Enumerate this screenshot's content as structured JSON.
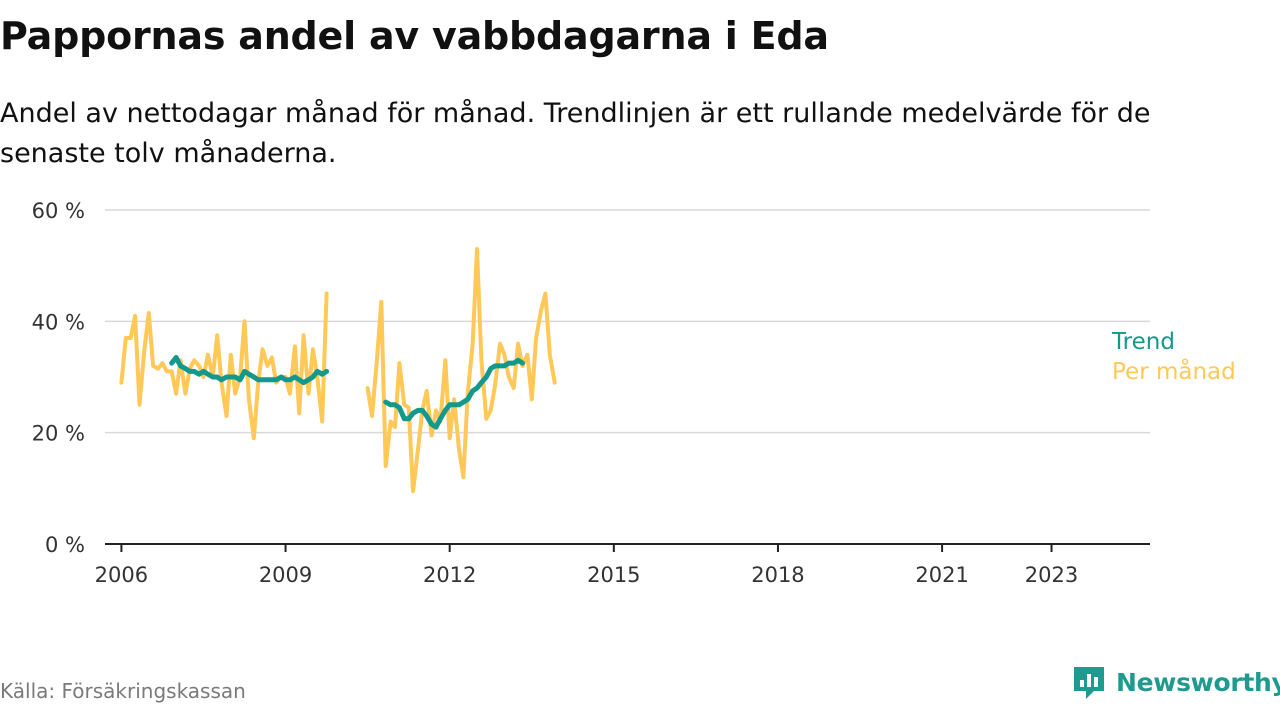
{
  "title": "Pappornas andel av vabbdagarna i Eda",
  "subtitle": "Andel av nettodagar månad för månad. Trendlinjen är ett rullande medelvärde för de senaste tolv månaderna.",
  "source": "Källa: Försäkringskassan",
  "brand": "Newsworthy",
  "colors": {
    "monthly": "#ffc857",
    "trend": "#12998c",
    "grid": "#d9d9d9",
    "axis": "#333333"
  },
  "chart_data": {
    "type": "line",
    "xlim": [
      2005.7,
      2024.8
    ],
    "ylim": [
      0,
      60
    ],
    "yticks": [
      0,
      20,
      40,
      60
    ],
    "ytick_labels": [
      "0 %",
      "20 %",
      "40 %",
      "60 %"
    ],
    "xticks": [
      2006,
      2009,
      2012,
      2015,
      2018,
      2021,
      2023
    ],
    "xtick_labels": [
      "2006",
      "2009",
      "2012",
      "2015",
      "2018",
      "2021",
      "2023"
    ],
    "grid": true,
    "series": [
      {
        "name": "Per månad",
        "segments": [
          [
            [
              2006.0,
              29
            ],
            [
              2006.08,
              37
            ],
            [
              2006.17,
              37
            ],
            [
              2006.25,
              41
            ],
            [
              2006.33,
              25
            ],
            [
              2006.42,
              35
            ],
            [
              2006.5,
              41.5
            ],
            [
              2006.58,
              32
            ],
            [
              2006.67,
              31.5
            ],
            [
              2006.75,
              32.5
            ],
            [
              2006.83,
              31
            ],
            [
              2006.92,
              31
            ],
            [
              2007.0,
              27
            ],
            [
              2007.08,
              33
            ],
            [
              2007.17,
              27
            ],
            [
              2007.25,
              31.5
            ],
            [
              2007.33,
              33
            ],
            [
              2007.42,
              32
            ],
            [
              2007.5,
              30
            ],
            [
              2007.58,
              34
            ],
            [
              2007.67,
              30
            ],
            [
              2007.75,
              37.5
            ],
            [
              2007.83,
              29
            ],
            [
              2007.92,
              23
            ],
            [
              2008.0,
              34
            ],
            [
              2008.08,
              27
            ],
            [
              2008.17,
              30
            ],
            [
              2008.25,
              40
            ],
            [
              2008.33,
              26
            ],
            [
              2008.42,
              19
            ],
            [
              2008.5,
              29
            ],
            [
              2008.58,
              35
            ],
            [
              2008.67,
              32
            ],
            [
              2008.75,
              33.5
            ],
            [
              2008.83,
              29
            ],
            [
              2008.92,
              30
            ],
            [
              2009.0,
              30
            ],
            [
              2009.08,
              27
            ],
            [
              2009.17,
              35.5
            ],
            [
              2009.25,
              23.5
            ],
            [
              2009.33,
              37.5
            ],
            [
              2009.42,
              27
            ],
            [
              2009.5,
              35
            ],
            [
              2009.58,
              30
            ],
            [
              2009.67,
              22
            ],
            [
              2009.75,
              45
            ]
          ],
          [
            [
              2010.5,
              28
            ],
            [
              2010.58,
              23
            ],
            [
              2010.67,
              33
            ],
            [
              2010.75,
              43.5
            ],
            [
              2010.83,
              14
            ],
            [
              2010.92,
              22
            ],
            [
              2011.0,
              21
            ],
            [
              2011.08,
              32.5
            ],
            [
              2011.17,
              25
            ],
            [
              2011.25,
              24.5
            ],
            [
              2011.33,
              9.5
            ],
            [
              2011.42,
              17
            ],
            [
              2011.5,
              24
            ],
            [
              2011.58,
              27.5
            ],
            [
              2011.67,
              19.5
            ],
            [
              2011.75,
              24
            ],
            [
              2011.83,
              22
            ],
            [
              2011.92,
              33
            ],
            [
              2012.0,
              19
            ],
            [
              2012.08,
              26
            ],
            [
              2012.17,
              17
            ],
            [
              2012.25,
              12
            ],
            [
              2012.33,
              27
            ],
            [
              2012.42,
              36
            ],
            [
              2012.5,
              53
            ],
            [
              2012.58,
              33
            ],
            [
              2012.67,
              22.5
            ],
            [
              2012.75,
              24
            ],
            [
              2012.83,
              28.5
            ],
            [
              2012.92,
              36
            ],
            [
              2013.0,
              34
            ],
            [
              2013.08,
              30
            ],
            [
              2013.17,
              28
            ],
            [
              2013.25,
              36
            ],
            [
              2013.33,
              32
            ],
            [
              2013.42,
              34
            ],
            [
              2013.5,
              26
            ],
            [
              2013.58,
              37
            ],
            [
              2013.67,
              42
            ],
            [
              2013.75,
              45
            ],
            [
              2013.83,
              34
            ],
            [
              2013.92,
              29
            ]
          ]
        ]
      },
      {
        "name": "Trend",
        "segments": [
          [
            [
              2006.92,
              32.5
            ],
            [
              2007.0,
              33.5
            ],
            [
              2007.08,
              32
            ],
            [
              2007.17,
              31.5
            ],
            [
              2007.25,
              31
            ],
            [
              2007.33,
              31
            ],
            [
              2007.42,
              30.5
            ],
            [
              2007.5,
              31
            ],
            [
              2007.58,
              30.5
            ],
            [
              2007.67,
              30
            ],
            [
              2007.75,
              30
            ],
            [
              2007.83,
              29.5
            ],
            [
              2007.92,
              30
            ],
            [
              2008.0,
              30
            ],
            [
              2008.08,
              30
            ],
            [
              2008.17,
              29.5
            ],
            [
              2008.25,
              31
            ],
            [
              2008.33,
              30.5
            ],
            [
              2008.42,
              30
            ],
            [
              2008.5,
              29.5
            ],
            [
              2008.58,
              29.5
            ],
            [
              2008.67,
              29.5
            ],
            [
              2008.75,
              29.5
            ],
            [
              2008.83,
              29.5
            ],
            [
              2008.92,
              30
            ],
            [
              2009.0,
              29.5
            ],
            [
              2009.08,
              29.5
            ],
            [
              2009.17,
              30
            ],
            [
              2009.25,
              29.5
            ],
            [
              2009.33,
              29
            ],
            [
              2009.42,
              29.5
            ],
            [
              2009.5,
              30
            ],
            [
              2009.58,
              31
            ],
            [
              2009.67,
              30.5
            ],
            [
              2009.75,
              31
            ]
          ],
          [
            [
              2010.83,
              25.5
            ],
            [
              2010.92,
              25
            ],
            [
              2011.0,
              25
            ],
            [
              2011.08,
              24.5
            ],
            [
              2011.17,
              22.5
            ],
            [
              2011.25,
              22.5
            ],
            [
              2011.33,
              23.5
            ],
            [
              2011.42,
              24
            ],
            [
              2011.5,
              24
            ],
            [
              2011.58,
              23
            ],
            [
              2011.67,
              21.5
            ],
            [
              2011.75,
              21
            ],
            [
              2011.83,
              22.5
            ],
            [
              2011.92,
              24
            ],
            [
              2012.0,
              25
            ],
            [
              2012.08,
              25
            ],
            [
              2012.17,
              25
            ],
            [
              2012.25,
              25.5
            ],
            [
              2012.33,
              26
            ],
            [
              2012.42,
              27.5
            ],
            [
              2012.5,
              28
            ],
            [
              2012.58,
              29
            ],
            [
              2012.67,
              30
            ],
            [
              2012.75,
              31.5
            ],
            [
              2012.83,
              32
            ],
            [
              2012.92,
              32
            ],
            [
              2013.0,
              32
            ],
            [
              2013.08,
              32.5
            ],
            [
              2013.17,
              32.5
            ],
            [
              2013.25,
              33
            ],
            [
              2013.33,
              32.5
            ]
          ]
        ]
      }
    ]
  }
}
